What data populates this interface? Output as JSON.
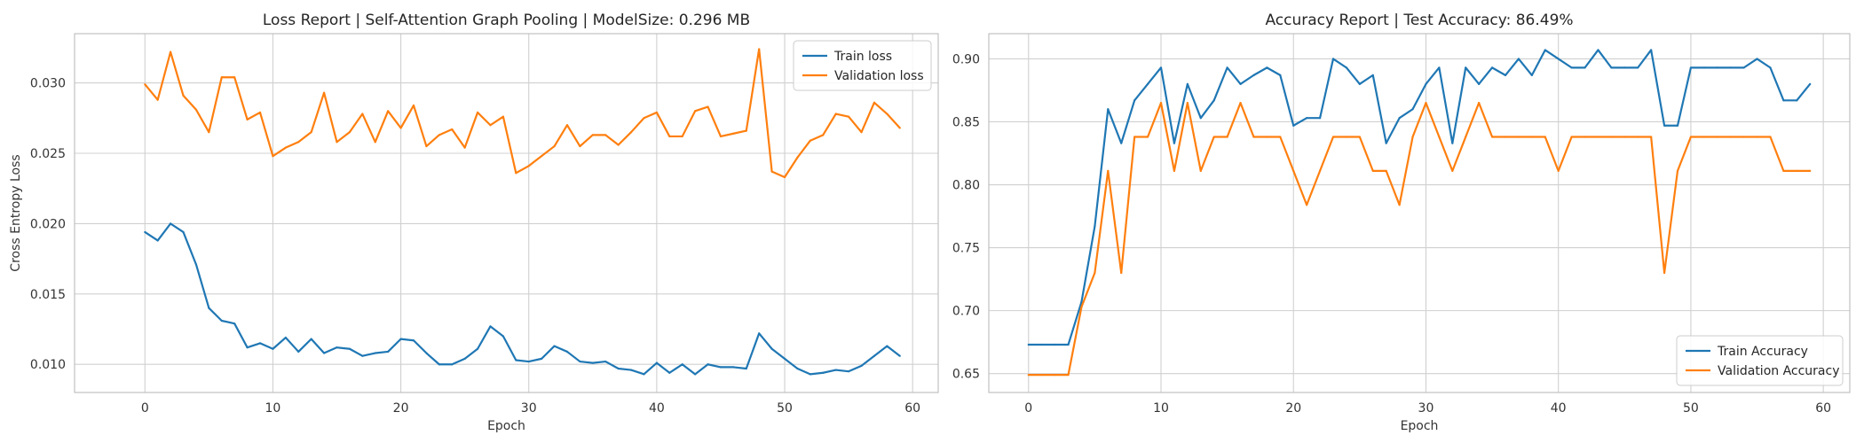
{
  "chart_data": [
    {
      "type": "line",
      "title": "Loss Report | Self-Attention Graph Pooling | ModelSize: 0.296 MB",
      "xlabel": "Epoch",
      "ylabel": "Cross Entropy Loss",
      "xlim": [
        -5.5,
        62
      ],
      "ylim": [
        0.008,
        0.0335
      ],
      "xticks": [
        0,
        10,
        20,
        30,
        40,
        50,
        60
      ],
      "xtick_labels": [
        "0",
        "10",
        "20",
        "30",
        "40",
        "50",
        "60"
      ],
      "yticks": [
        0.01,
        0.015,
        0.02,
        0.025,
        0.03
      ],
      "ytick_labels": [
        "0.010",
        "0.015",
        "0.020",
        "0.025",
        "0.030"
      ],
      "grid": true,
      "legend_position": "top-right",
      "colors": [
        "#1f77b4",
        "#ff7f0e"
      ],
      "series": [
        {
          "name": "Train loss",
          "values": [
            0.0194,
            0.0188,
            0.02,
            0.0194,
            0.0171,
            0.014,
            0.0131,
            0.0129,
            0.0112,
            0.0115,
            0.0111,
            0.0119,
            0.0109,
            0.0118,
            0.0108,
            0.0112,
            0.0111,
            0.0106,
            0.0108,
            0.0109,
            0.0118,
            0.0117,
            0.0108,
            0.01,
            0.01,
            0.0104,
            0.0111,
            0.0127,
            0.012,
            0.0103,
            0.0102,
            0.0104,
            0.0113,
            0.0109,
            0.0102,
            0.0101,
            0.0102,
            0.0097,
            0.0096,
            0.0093,
            0.0101,
            0.0094,
            0.01,
            0.0093,
            0.01,
            0.0098,
            0.0098,
            0.0097,
            0.0122,
            0.0111,
            0.0104,
            0.0097,
            0.0093,
            0.0094,
            0.0096,
            0.0095,
            0.0099,
            0.0106,
            0.0113,
            0.0106
          ]
        },
        {
          "name": "Validation loss",
          "values": [
            0.0299,
            0.0288,
            0.0322,
            0.0291,
            0.0281,
            0.0265,
            0.0304,
            0.0304,
            0.0274,
            0.0279,
            0.0248,
            0.0254,
            0.0258,
            0.0265,
            0.0293,
            0.0258,
            0.0265,
            0.0278,
            0.0258,
            0.028,
            0.0268,
            0.0284,
            0.0255,
            0.0263,
            0.0267,
            0.0254,
            0.0279,
            0.027,
            0.0276,
            0.0236,
            0.0241,
            0.0248,
            0.0255,
            0.027,
            0.0255,
            0.0263,
            0.0263,
            0.0256,
            0.0265,
            0.0275,
            0.0279,
            0.0262,
            0.0262,
            0.028,
            0.0283,
            0.0262,
            0.0264,
            0.0266,
            0.0324,
            0.0237,
            0.0233,
            0.0247,
            0.0259,
            0.0263,
            0.0278,
            0.0276,
            0.0265,
            0.0286,
            0.0278,
            0.0268
          ]
        }
      ]
    },
    {
      "type": "line",
      "title": "Accuracy Report | Test Accuracy: 86.49%",
      "xlabel": "Epoch",
      "ylabel": "",
      "xlim": [
        -3,
        62
      ],
      "ylim": [
        0.635,
        0.92
      ],
      "xticks": [
        0,
        10,
        20,
        30,
        40,
        50,
        60
      ],
      "xtick_labels": [
        "0",
        "10",
        "20",
        "30",
        "40",
        "50",
        "60"
      ],
      "yticks": [
        0.65,
        0.7,
        0.75,
        0.8,
        0.85,
        0.9
      ],
      "ytick_labels": [
        "0.65",
        "0.70",
        "0.75",
        "0.80",
        "0.85",
        "0.90"
      ],
      "grid": true,
      "legend_position": "bottom-right",
      "colors": [
        "#1f77b4",
        "#ff7f0e"
      ],
      "series": [
        {
          "name": "Train Accuracy",
          "values": [
            0.673,
            0.673,
            0.673,
            0.673,
            0.707,
            0.767,
            0.86,
            0.833,
            0.867,
            0.88,
            0.893,
            0.833,
            0.88,
            0.853,
            0.867,
            0.893,
            0.88,
            0.887,
            0.893,
            0.887,
            0.847,
            0.853,
            0.853,
            0.9,
            0.893,
            0.88,
            0.887,
            0.833,
            0.853,
            0.86,
            0.88,
            0.893,
            0.833,
            0.893,
            0.88,
            0.893,
            0.887,
            0.9,
            0.887,
            0.907,
            0.9,
            0.893,
            0.893,
            0.907,
            0.893,
            0.893,
            0.893,
            0.907,
            0.847,
            0.847,
            0.893,
            0.893,
            0.893,
            0.893,
            0.893,
            0.9,
            0.893,
            0.867,
            0.867,
            0.88
          ]
        },
        {
          "name": "Validation Accuracy",
          "values": [
            0.649,
            0.649,
            0.649,
            0.649,
            0.703,
            0.73,
            0.811,
            0.73,
            0.838,
            0.838,
            0.865,
            0.811,
            0.865,
            0.811,
            0.838,
            0.838,
            0.865,
            0.838,
            0.838,
            0.838,
            0.811,
            0.784,
            0.811,
            0.838,
            0.838,
            0.838,
            0.811,
            0.811,
            0.784,
            0.838,
            0.865,
            0.838,
            0.811,
            0.838,
            0.865,
            0.838,
            0.838,
            0.838,
            0.838,
            0.838,
            0.811,
            0.838,
            0.838,
            0.838,
            0.838,
            0.838,
            0.838,
            0.838,
            0.73,
            0.811,
            0.838,
            0.838,
            0.838,
            0.838,
            0.838,
            0.838,
            0.838,
            0.811,
            0.811,
            0.811
          ]
        }
      ]
    }
  ]
}
